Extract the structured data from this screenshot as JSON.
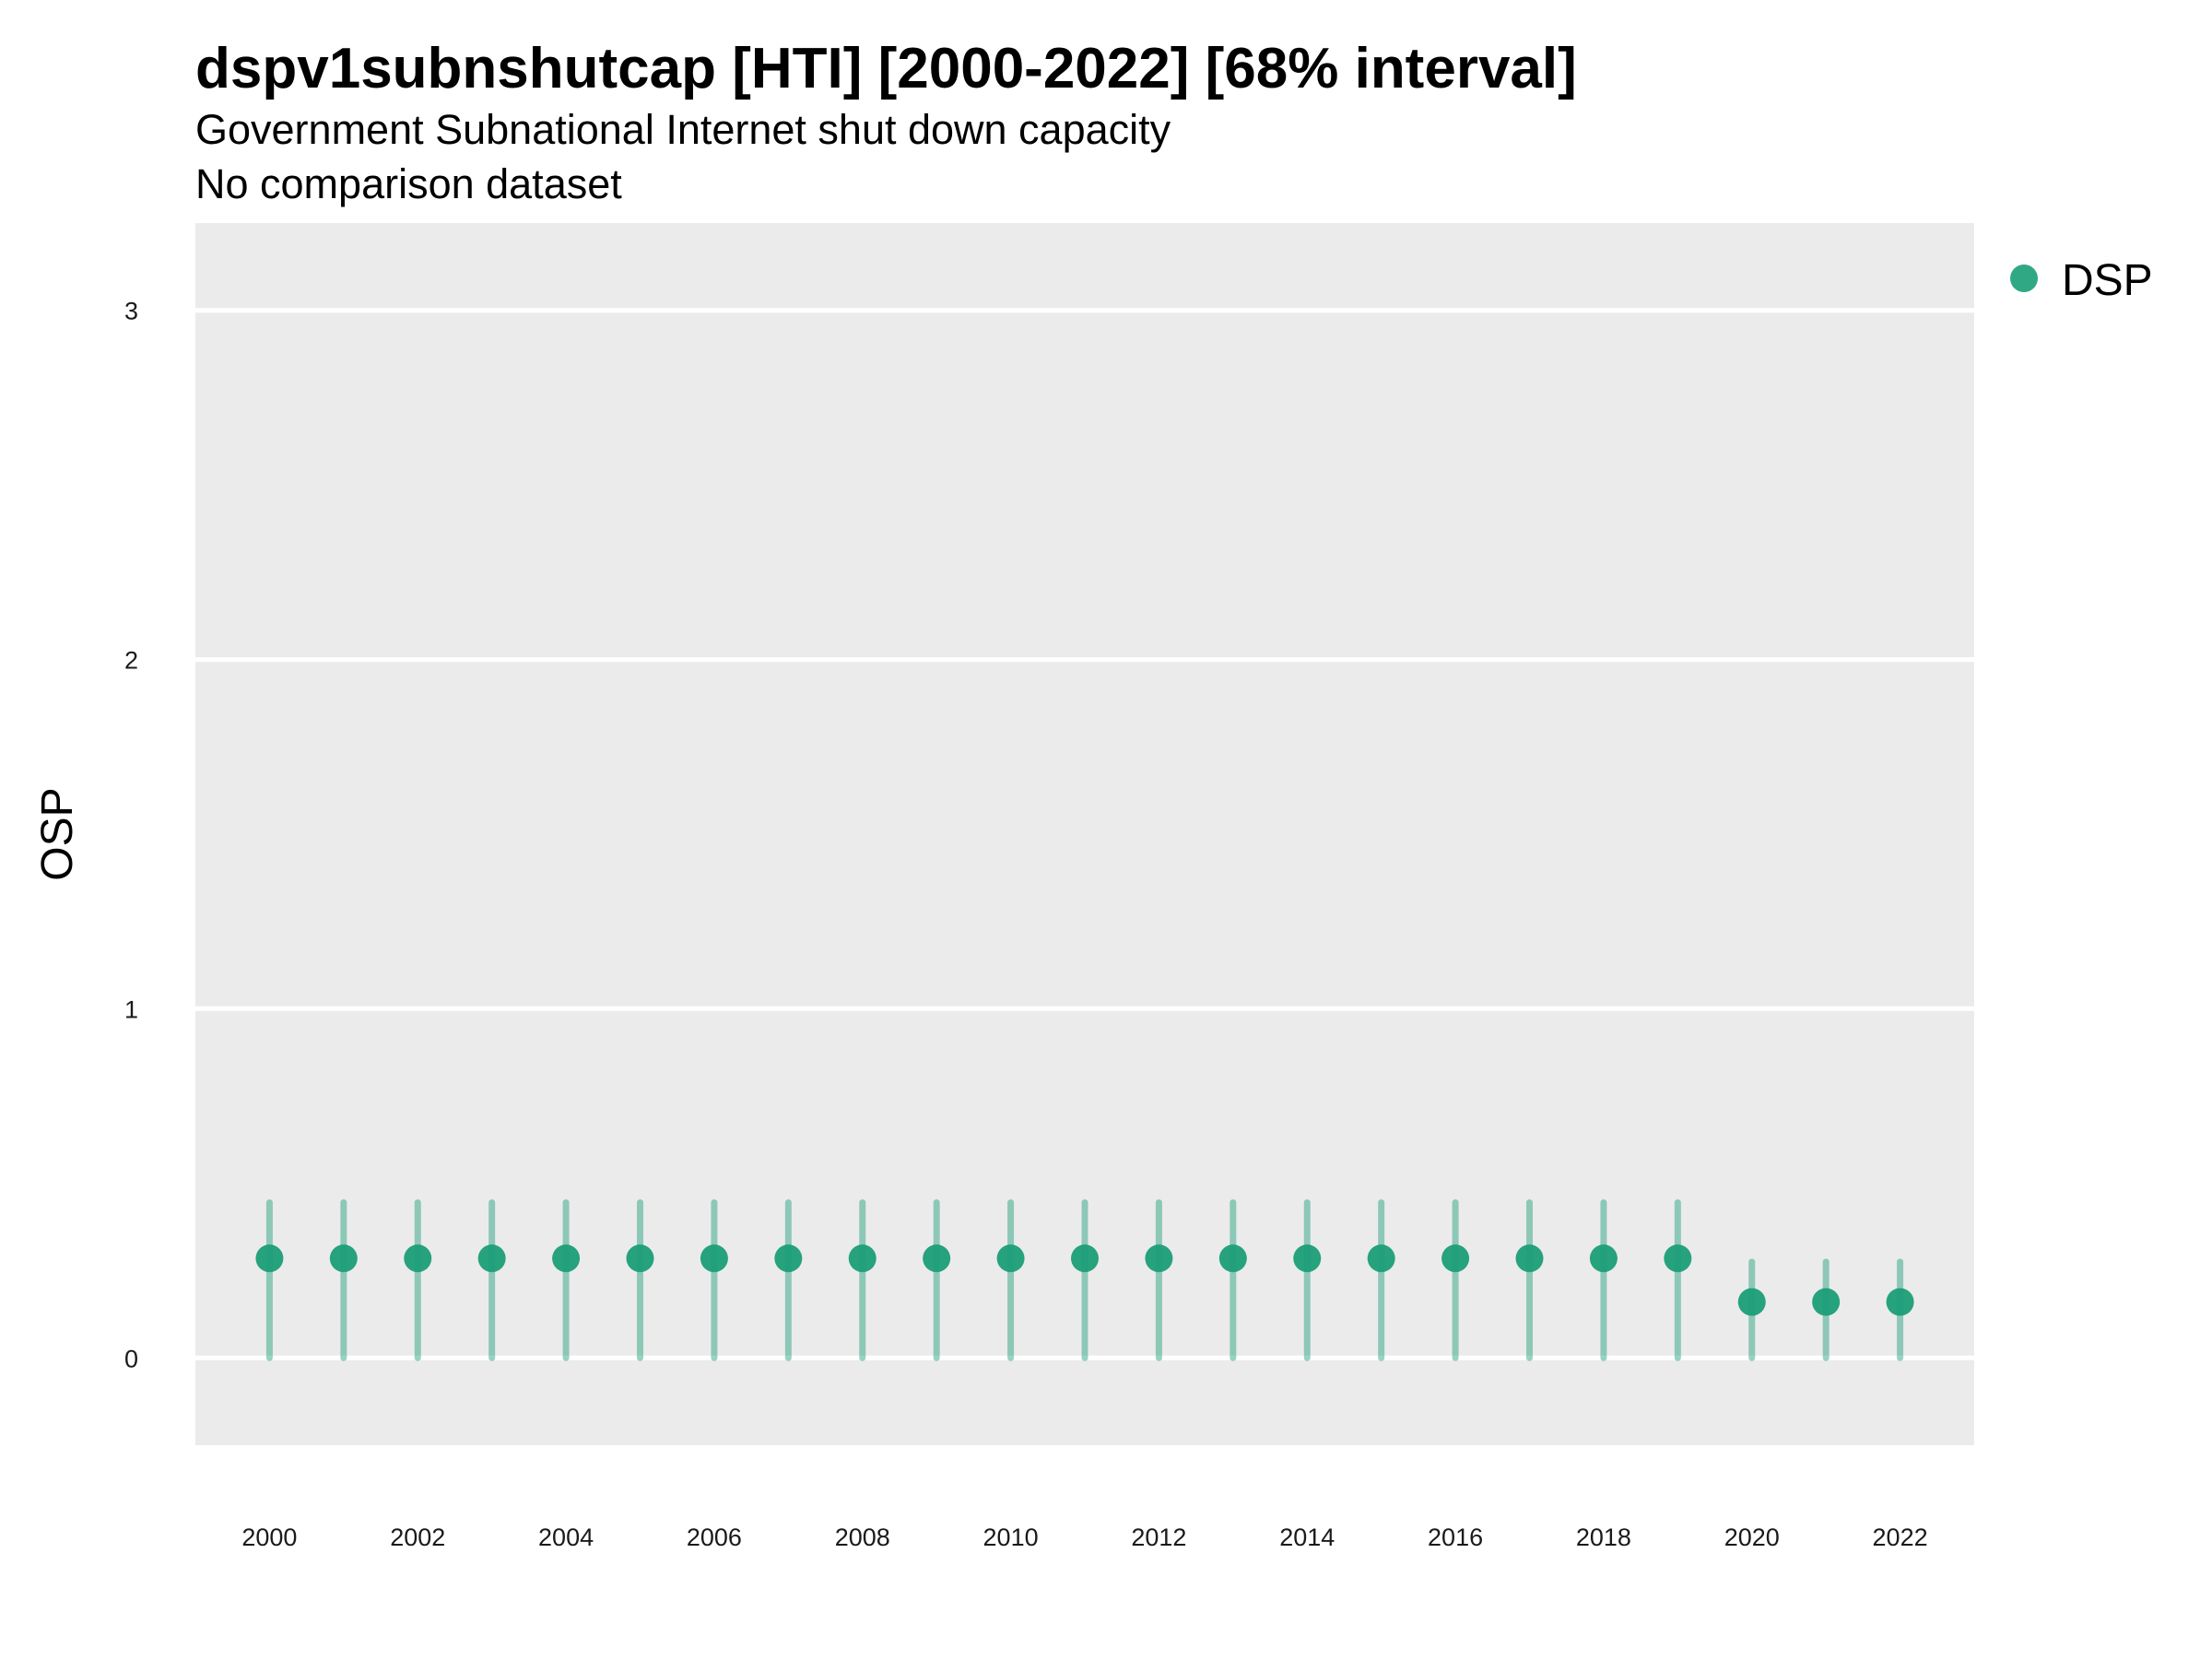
{
  "chart_data": {
    "type": "scatter",
    "title": "dspv1subnshutcap [HTI] [2000-2022] [68% interval]",
    "subtitle": "Government Subnational Internet shut down capacity",
    "caption": "No comparison dataset",
    "xlabel": "",
    "ylabel": "OSP",
    "xlim": [
      1999,
      2023
    ],
    "ylim": [
      -0.25,
      3.25
    ],
    "x_ticks": [
      2000,
      2002,
      2004,
      2006,
      2008,
      2010,
      2012,
      2014,
      2016,
      2018,
      2020,
      2022
    ],
    "y_ticks": [
      0,
      1,
      2,
      3
    ],
    "grid": true,
    "legend_position": "right",
    "series": [
      {
        "name": "DSP",
        "color": "#1b9e77",
        "x": [
          2000,
          2001,
          2002,
          2003,
          2004,
          2005,
          2006,
          2007,
          2008,
          2009,
          2010,
          2011,
          2012,
          2013,
          2014,
          2015,
          2016,
          2017,
          2018,
          2019,
          2020,
          2021,
          2022
        ],
        "y": [
          0.285,
          0.285,
          0.285,
          0.285,
          0.285,
          0.285,
          0.285,
          0.285,
          0.285,
          0.285,
          0.285,
          0.285,
          0.285,
          0.285,
          0.285,
          0.285,
          0.285,
          0.285,
          0.285,
          0.285,
          0.16,
          0.16,
          0.16
        ],
        "lower": [
          0,
          0,
          0,
          0,
          0,
          0,
          0,
          0,
          0,
          0,
          0,
          0,
          0,
          0,
          0,
          0,
          0,
          0,
          0,
          0,
          0,
          0,
          0
        ],
        "upper": [
          0.445,
          0.445,
          0.445,
          0.445,
          0.445,
          0.445,
          0.445,
          0.445,
          0.445,
          0.445,
          0.445,
          0.445,
          0.445,
          0.445,
          0.445,
          0.445,
          0.445,
          0.445,
          0.445,
          0.445,
          0.275,
          0.275,
          0.275
        ]
      }
    ]
  }
}
